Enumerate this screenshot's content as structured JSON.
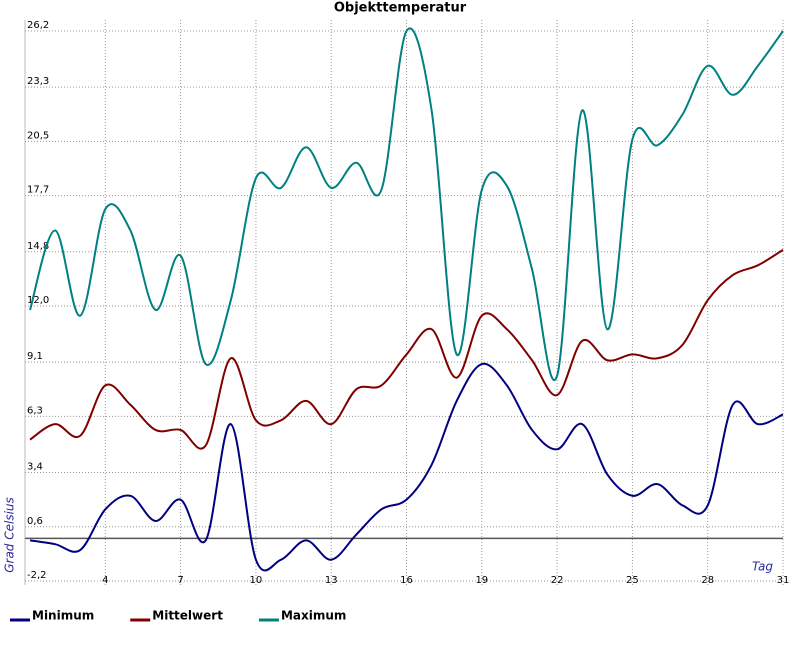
{
  "chart_data": {
    "type": "line",
    "title": "Objekttemperatur",
    "x_label": "Tag",
    "y_label": "Grad Celsius",
    "x": [
      1,
      2,
      3,
      4,
      5,
      6,
      7,
      8,
      9,
      10,
      11,
      12,
      13,
      14,
      15,
      16,
      17,
      18,
      19,
      20,
      21,
      22,
      23,
      24,
      25,
      26,
      27,
      28,
      29,
      30,
      31
    ],
    "series": [
      {
        "name": "Minimum",
        "color": "#000080",
        "values": [
          -0.1,
          -0.3,
          -0.6,
          1.5,
          2.2,
          0.9,
          2.0,
          -0.1,
          5.9,
          -1.1,
          -1.1,
          -0.1,
          -1.1,
          0.2,
          1.5,
          2.0,
          3.8,
          7.1,
          9.0,
          7.9,
          5.6,
          4.6,
          5.9,
          3.3,
          2.2,
          2.8,
          1.7,
          1.7,
          6.9,
          5.9,
          6.4
        ]
      },
      {
        "name": "Mittelwert",
        "color": "#800000",
        "values": [
          5.1,
          5.9,
          5.3,
          7.9,
          6.9,
          5.6,
          5.6,
          4.8,
          9.3,
          6.1,
          6.1,
          7.1,
          5.9,
          7.7,
          7.9,
          9.5,
          10.8,
          8.3,
          11.5,
          10.8,
          9.2,
          7.4,
          10.2,
          9.2,
          9.5,
          9.3,
          10.0,
          12.3,
          13.6,
          14.1,
          14.9
        ]
      },
      {
        "name": "Maximum",
        "color": "#008080",
        "values": [
          11.8,
          15.9,
          11.5,
          17.0,
          15.9,
          11.8,
          14.6,
          9.0,
          12.3,
          18.6,
          18.1,
          20.2,
          18.1,
          19.4,
          18.0,
          26.2,
          22.1,
          9.5,
          18.0,
          18.2,
          13.9,
          8.4,
          22.1,
          10.8,
          20.6,
          20.3,
          21.9,
          24.4,
          22.9,
          24.4,
          26.2
        ]
      }
    ],
    "xlim": [
      0.8,
      31
    ],
    "xticks": [
      4,
      7,
      10,
      13,
      16,
      19,
      22,
      25,
      28,
      31
    ],
    "ylim": [
      -2.2,
      26.2
    ],
    "yticks": [
      {
        "value": -2.2,
        "label": "-2,2"
      },
      {
        "value": 0.6,
        "label": "0,6"
      },
      {
        "value": 3.4,
        "label": "3,4"
      },
      {
        "value": 6.3,
        "label": "6,3"
      },
      {
        "value": 9.1,
        "label": "9,1"
      },
      {
        "value": 12.0,
        "label": "12,0"
      },
      {
        "value": 14.8,
        "label": "14,8"
      },
      {
        "value": 17.7,
        "label": "17,7"
      },
      {
        "value": 20.5,
        "label": "20,5"
      },
      {
        "value": 23.3,
        "label": "23,3"
      },
      {
        "value": 26.2,
        "label": "26,2"
      }
    ],
    "grid": true,
    "legend": "bottom"
  }
}
